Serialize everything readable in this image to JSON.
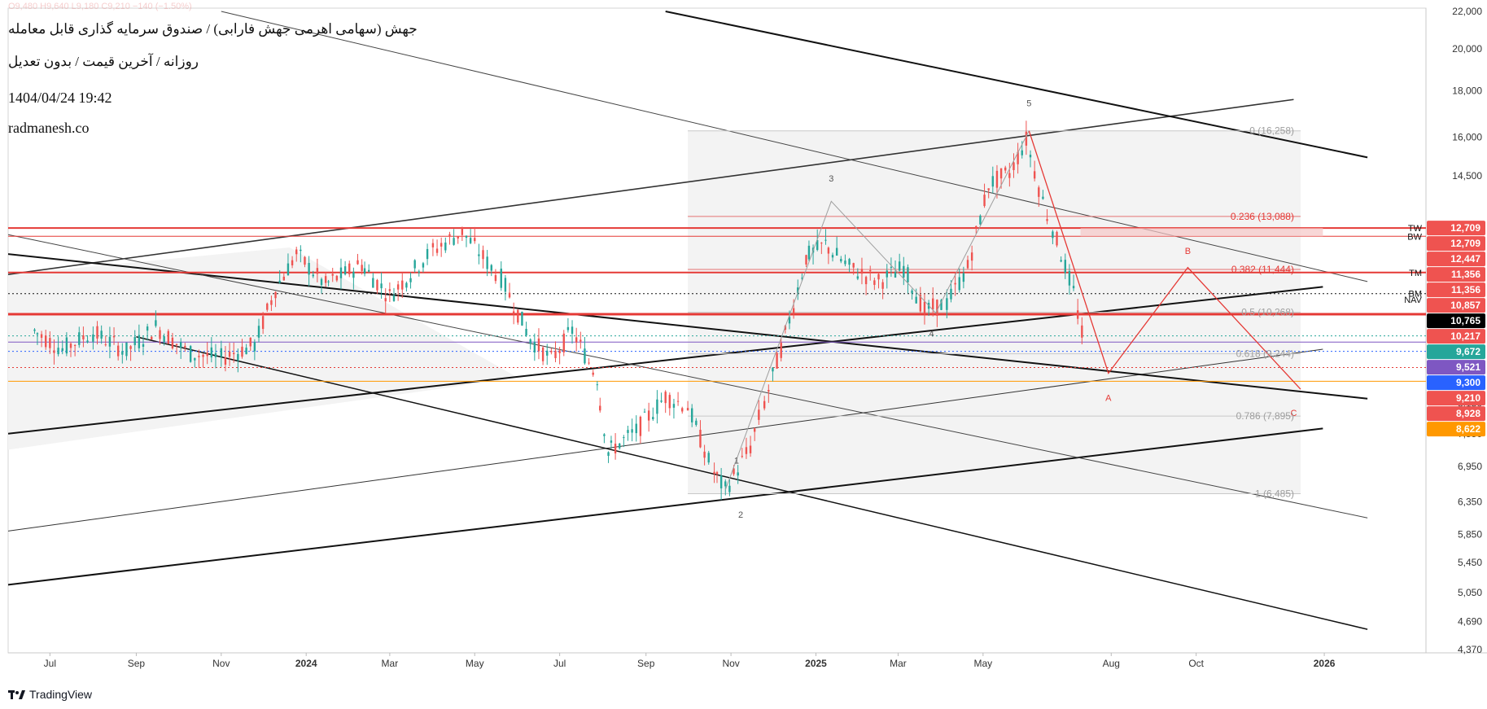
{
  "header": {
    "title": "جهش (سهامی اهرمی جهش فارابی) / صندوق سرمایه گذاری قابل معامله",
    "subtitle": "روزانه / آخرین قیمت / بدون تعدیل",
    "datetime": "1404/04/24 19:42",
    "website": "radmanesh.co",
    "ohlc": "O9,480  H9,640  L9,180  C9,210  −140 (−1.50%)"
  },
  "footer": {
    "brand": "TradingView"
  },
  "colors": {
    "up": "#26a69a",
    "down": "#ef5350",
    "fib": "#e53935",
    "orange": "#ff9800",
    "purple": "#7e57c2",
    "blue": "#2962ff",
    "teal": "#26a69a"
  },
  "chart_data": {
    "type": "line",
    "price_scale": "log",
    "ylim": [
      4370,
      22000
    ],
    "y_ticks": [
      4370,
      4690,
      5050,
      5450,
      5850,
      6350,
      6950,
      7550,
      8150,
      14500,
      16000,
      18000,
      20000,
      22000
    ],
    "x_tick_labels": [
      {
        "label": "Jul",
        "date": "2023-07-01"
      },
      {
        "label": "Sep",
        "date": "2023-09-01"
      },
      {
        "label": "Nov",
        "date": "2023-11-01"
      },
      {
        "label": "2024",
        "date": "2024-01-01",
        "bold": true
      },
      {
        "label": "Mar",
        "date": "2024-03-01"
      },
      {
        "label": "May",
        "date": "2024-05-01"
      },
      {
        "label": "Jul",
        "date": "2024-07-01"
      },
      {
        "label": "Sep",
        "date": "2024-09-01"
      },
      {
        "label": "Nov",
        "date": "2024-11-01"
      },
      {
        "label": "2025",
        "date": "2025-01-01",
        "bold": true
      },
      {
        "label": "Mar",
        "date": "2025-03-01"
      },
      {
        "label": "May",
        "date": "2025-05-01"
      },
      {
        "label": "Aug",
        "date": "2025-08-01"
      },
      {
        "label": "Oct",
        "date": "2025-10-01"
      },
      {
        "label": "2026",
        "date": "2026-01-01",
        "bold": true
      }
    ],
    "price_path": [
      {
        "x": "2023-06-20",
        "y": 9800
      },
      {
        "x": "2023-07-10",
        "y": 9350
      },
      {
        "x": "2023-08-01",
        "y": 9750
      },
      {
        "x": "2023-08-25",
        "y": 9300
      },
      {
        "x": "2023-09-15",
        "y": 9900
      },
      {
        "x": "2023-10-10",
        "y": 9250
      },
      {
        "x": "2023-11-01",
        "y": 9150
      },
      {
        "x": "2023-11-25",
        "y": 9450
      },
      {
        "x": "2023-12-10",
        "y": 10900
      },
      {
        "x": "2023-12-25",
        "y": 11900
      },
      {
        "x": "2024-01-15",
        "y": 11000
      },
      {
        "x": "2024-02-10",
        "y": 11600
      },
      {
        "x": "2024-03-01",
        "y": 10700
      },
      {
        "x": "2024-04-01",
        "y": 12000
      },
      {
        "x": "2024-04-22",
        "y": 12600
      },
      {
        "x": "2024-05-20",
        "y": 11200
      },
      {
        "x": "2024-06-10",
        "y": 9600
      },
      {
        "x": "2024-06-25",
        "y": 9100
      },
      {
        "x": "2024-07-10",
        "y": 9800
      },
      {
        "x": "2024-07-28",
        "y": 8700
      },
      {
        "x": "2024-08-05",
        "y": 7200
      },
      {
        "x": "2024-08-25",
        "y": 7600
      },
      {
        "x": "2024-09-15",
        "y": 8300
      },
      {
        "x": "2024-10-01",
        "y": 8100
      },
      {
        "x": "2024-10-20",
        "y": 6850
      },
      {
        "x": "2024-10-28",
        "y": 6550
      },
      {
        "x": "2024-11-15",
        "y": 7300
      },
      {
        "x": "2024-11-25",
        "y": 8150
      },
      {
        "x": "2024-12-10",
        "y": 9700
      },
      {
        "x": "2024-12-25",
        "y": 11800
      },
      {
        "x": "2025-01-08",
        "y": 12200
      },
      {
        "x": "2025-01-25",
        "y": 11500
      },
      {
        "x": "2025-02-15",
        "y": 11100
      },
      {
        "x": "2025-03-05",
        "y": 11500
      },
      {
        "x": "2025-03-20",
        "y": 10300
      },
      {
        "x": "2025-04-05",
        "y": 10500
      },
      {
        "x": "2025-04-20",
        "y": 11500
      },
      {
        "x": "2025-05-05",
        "y": 14200
      },
      {
        "x": "2025-05-20",
        "y": 14600
      },
      {
        "x": "2025-06-01",
        "y": 15900
      },
      {
        "x": "2025-06-10",
        "y": 14100
      },
      {
        "x": "2025-06-20",
        "y": 12700
      },
      {
        "x": "2025-07-05",
        "y": 10800
      },
      {
        "x": "2025-07-15",
        "y": 9210
      }
    ],
    "fibonacci": {
      "from_date": "2024-10-01",
      "to_date": "2025-12-15",
      "levels": [
        {
          "label": "0 (16,258)",
          "value": 16258
        },
        {
          "label": "0.236 (13,088)",
          "value": 13088
        },
        {
          "label": "0.382 (11,444)",
          "value": 11444
        },
        {
          "label": "0.5 (10,268)",
          "value": 10268
        },
        {
          "label": "0.618 (9,244)",
          "value": 9244
        },
        {
          "label": "0.786 (7,895)",
          "value": 7895
        },
        {
          "label": "1 (6,485)",
          "value": 6485
        }
      ]
    },
    "horizontal_levels": [
      {
        "value": 12709,
        "color": "#e53935",
        "style": "solid",
        "width": 2
      },
      {
        "value": 12447,
        "color": "#e53935",
        "style": "solid",
        "width": 1
      },
      {
        "value": 11356,
        "color": "#e53935",
        "style": "solid",
        "width": 2
      },
      {
        "value": 10765,
        "color": "#111111",
        "style": "dotted",
        "width": 1
      },
      {
        "value": 10217,
        "color": "#e53935",
        "style": "solid",
        "width": 3
      },
      {
        "value": 9672,
        "color": "#26a69a",
        "style": "dotted",
        "width": 1
      },
      {
        "value": 9521,
        "color": "#7e57c2",
        "style": "solid",
        "width": 1
      },
      {
        "value": 9300,
        "color": "#2962ff",
        "style": "dotted",
        "width": 1
      },
      {
        "value": 8928,
        "color": "#e53935",
        "style": "dotted",
        "width": 1
      },
      {
        "value": 8622,
        "color": "#ff9800",
        "style": "solid",
        "width": 1
      }
    ],
    "price_labels": [
      {
        "text": "12,709",
        "value": 12709,
        "bg": "#ef5350"
      },
      {
        "text": "12,709",
        "value": 12709,
        "bg": "#ef5350"
      },
      {
        "text": "12,447",
        "value": 12447,
        "bg": "#ef5350"
      },
      {
        "text": "11,356",
        "value": 11356,
        "bg": "#ef5350"
      },
      {
        "text": "11,356",
        "value": 11356,
        "bg": "#ef5350"
      },
      {
        "text": "10,857",
        "value": 10857,
        "bg": "#ef5350"
      },
      {
        "text": "10,765",
        "value": 10765,
        "bg": "#000000"
      },
      {
        "text": "10,217",
        "value": 10217,
        "bg": "#ef5350"
      },
      {
        "text": "9,672",
        "value": 9672,
        "bg": "#26a69a"
      },
      {
        "text": "9,521",
        "value": 9521,
        "bg": "#7e57c2"
      },
      {
        "text": "9,300",
        "value": 9300,
        "bg": "#2962ff"
      },
      {
        "text": "9,210",
        "value": 9210,
        "bg": "#ef5350"
      },
      {
        "text": "8,928",
        "value": 8928,
        "bg": "#ef5350"
      },
      {
        "text": "8,622",
        "value": 8622,
        "bg": "#ff9800"
      }
    ],
    "level_tags": [
      {
        "text": "TW",
        "value": 12709
      },
      {
        "text": "BW",
        "value": 12447
      },
      {
        "text": "TM",
        "value": 11356
      },
      {
        "text": "BM",
        "value": 10765
      },
      {
        "text": "NAV",
        "value": 10600
      }
    ],
    "wave_labels": [
      {
        "text": "1",
        "x": "2024-11-05",
        "y": 7000,
        "color": "#555555"
      },
      {
        "text": "2",
        "x": "2024-11-08",
        "y": 6100,
        "color": "#555555"
      },
      {
        "text": "3",
        "x": "2025-01-12",
        "y": 14300,
        "color": "#555555"
      },
      {
        "text": "4",
        "x": "2025-03-25",
        "y": 9650,
        "color": "#555555"
      },
      {
        "text": "5",
        "x": "2025-06-03",
        "y": 17300,
        "color": "#555555"
      },
      {
        "text": "A",
        "x": "2025-07-30",
        "y": 8200,
        "color": "#e53935"
      },
      {
        "text": "B",
        "x": "2025-09-25",
        "y": 11900,
        "color": "#e53935"
      },
      {
        "text": "C",
        "x": "2025-12-10",
        "y": 7900,
        "color": "#e53935"
      }
    ],
    "impulse_path": [
      {
        "x": "2024-10-28",
        "y": 6550
      },
      {
        "x": "2025-01-12",
        "y": 13600
      },
      {
        "x": "2025-03-28",
        "y": 10250
      },
      {
        "x": "2025-06-03",
        "y": 16258
      }
    ],
    "correction_path": [
      {
        "x": "2025-06-03",
        "y": 16258
      },
      {
        "x": "2025-07-30",
        "y": 8800
      },
      {
        "x": "2025-09-25",
        "y": 11500
      },
      {
        "x": "2025-12-15",
        "y": 8450
      }
    ]
  }
}
